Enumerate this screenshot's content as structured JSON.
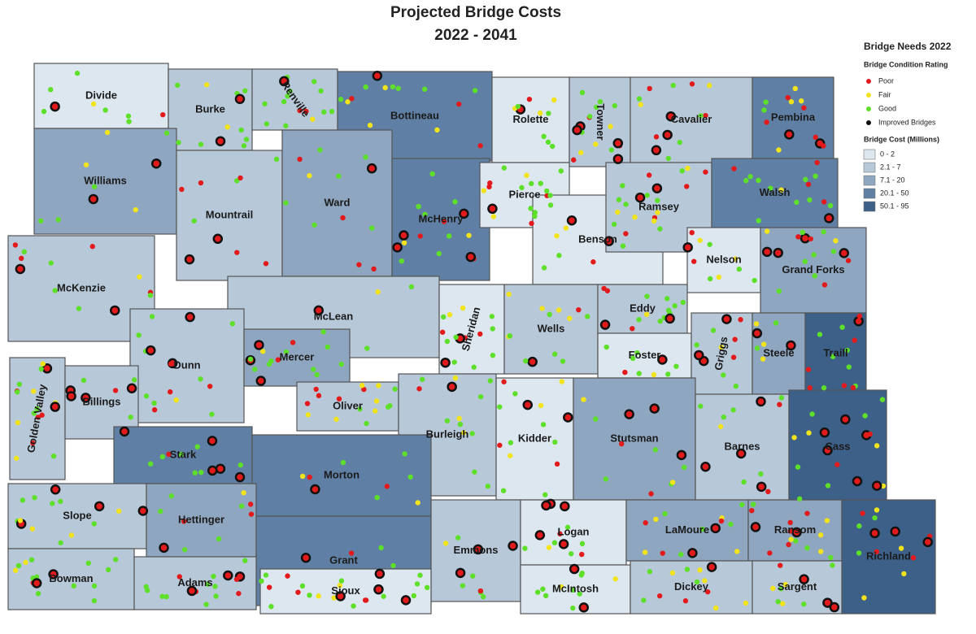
{
  "title": [
    "Projected Bridge Costs",
    "2022 - 2041"
  ],
  "legend": {
    "title": "Bridge Needs 2022",
    "condition_title": "Bridge Condition Rating",
    "condition_items": [
      {
        "label": "Poor",
        "color": "#e31a1c"
      },
      {
        "label": "Fair",
        "color": "#f2e41c"
      },
      {
        "label": "Good",
        "color": "#5ee02a"
      },
      {
        "label": "Improved Bridges",
        "color": "#111111"
      }
    ],
    "cost_title": "Bridge Cost (Millions)",
    "cost_items": [
      {
        "label": "0 - 2",
        "color": "#dde7f0"
      },
      {
        "label": "2.1 - 7",
        "color": "#b7c8d9"
      },
      {
        "label": "7.1 - 20",
        "color": "#8ea6bf"
      },
      {
        "label": "20.1 - 50",
        "color": "#5f80a4"
      },
      {
        "label": "50.1 - 95",
        "color": "#3d6089"
      }
    ]
  },
  "counties": [
    {
      "name": "Divide",
      "cost": "0 - 2"
    },
    {
      "name": "Burke",
      "cost": "2.1 - 7"
    },
    {
      "name": "Renville",
      "cost": "2.1 - 7"
    },
    {
      "name": "Bottineau",
      "cost": "20.1 - 50"
    },
    {
      "name": "Rolette",
      "cost": "0 - 2"
    },
    {
      "name": "Towner",
      "cost": "2.1 - 7"
    },
    {
      "name": "Cavalier",
      "cost": "2.1 - 7"
    },
    {
      "name": "Pembina",
      "cost": "20.1 - 50"
    },
    {
      "name": "Williams",
      "cost": "7.1 - 20"
    },
    {
      "name": "Mountrail",
      "cost": "2.1 - 7"
    },
    {
      "name": "Ward",
      "cost": "7.1 - 20"
    },
    {
      "name": "McHenry",
      "cost": "20.1 - 50"
    },
    {
      "name": "Pierce",
      "cost": "0 - 2"
    },
    {
      "name": "Benson",
      "cost": "0 - 2"
    },
    {
      "name": "Ramsey",
      "cost": "2.1 - 7"
    },
    {
      "name": "Walsh",
      "cost": "20.1 - 50"
    },
    {
      "name": "Nelson",
      "cost": "0 - 2"
    },
    {
      "name": "Grand Forks",
      "cost": "7.1 - 20"
    },
    {
      "name": "McKenzie",
      "cost": "2.1 - 7"
    },
    {
      "name": "McLean",
      "cost": "2.1 - 7"
    },
    {
      "name": "Sheridan",
      "cost": "0 - 2"
    },
    {
      "name": "Wells",
      "cost": "2.1 - 7"
    },
    {
      "name": "Eddy",
      "cost": "2.1 - 7"
    },
    {
      "name": "Foster",
      "cost": "0 - 2"
    },
    {
      "name": "Griggs",
      "cost": "2.1 - 7"
    },
    {
      "name": "Steele",
      "cost": "7.1 - 20"
    },
    {
      "name": "Traill",
      "cost": "50.1 - 95"
    },
    {
      "name": "Dunn",
      "cost": "2.1 - 7"
    },
    {
      "name": "Golden Valley",
      "cost": "2.1 - 7"
    },
    {
      "name": "Billings",
      "cost": "2.1 - 7"
    },
    {
      "name": "Mercer",
      "cost": "7.1 - 20"
    },
    {
      "name": "Oliver",
      "cost": "2.1 - 7"
    },
    {
      "name": "Burleigh",
      "cost": "2.1 - 7"
    },
    {
      "name": "Kidder",
      "cost": "0 - 2"
    },
    {
      "name": "Stutsman",
      "cost": "7.1 - 20"
    },
    {
      "name": "Barnes",
      "cost": "2.1 - 7"
    },
    {
      "name": "Cass",
      "cost": "50.1 - 95"
    },
    {
      "name": "Stark",
      "cost": "20.1 - 50"
    },
    {
      "name": "Morton",
      "cost": "20.1 - 50"
    },
    {
      "name": "Slope",
      "cost": "2.1 - 7"
    },
    {
      "name": "Hettinger",
      "cost": "7.1 - 20"
    },
    {
      "name": "Grant",
      "cost": "20.1 - 50"
    },
    {
      "name": "Emmons",
      "cost": "2.1 - 7"
    },
    {
      "name": "Logan",
      "cost": "0 - 2"
    },
    {
      "name": "LaMoure",
      "cost": "7.1 - 20"
    },
    {
      "name": "Ransom",
      "cost": "7.1 - 20"
    },
    {
      "name": "Richland",
      "cost": "50.1 - 95"
    },
    {
      "name": "Bowman",
      "cost": "2.1 - 7"
    },
    {
      "name": "Adams",
      "cost": "2.1 - 7"
    },
    {
      "name": "Sioux",
      "cost": "0 - 2"
    },
    {
      "name": "McIntosh",
      "cost": "0 - 2"
    },
    {
      "name": "Dickey",
      "cost": "2.1 - 7"
    },
    {
      "name": "Sargent",
      "cost": "2.1 - 7"
    }
  ]
}
